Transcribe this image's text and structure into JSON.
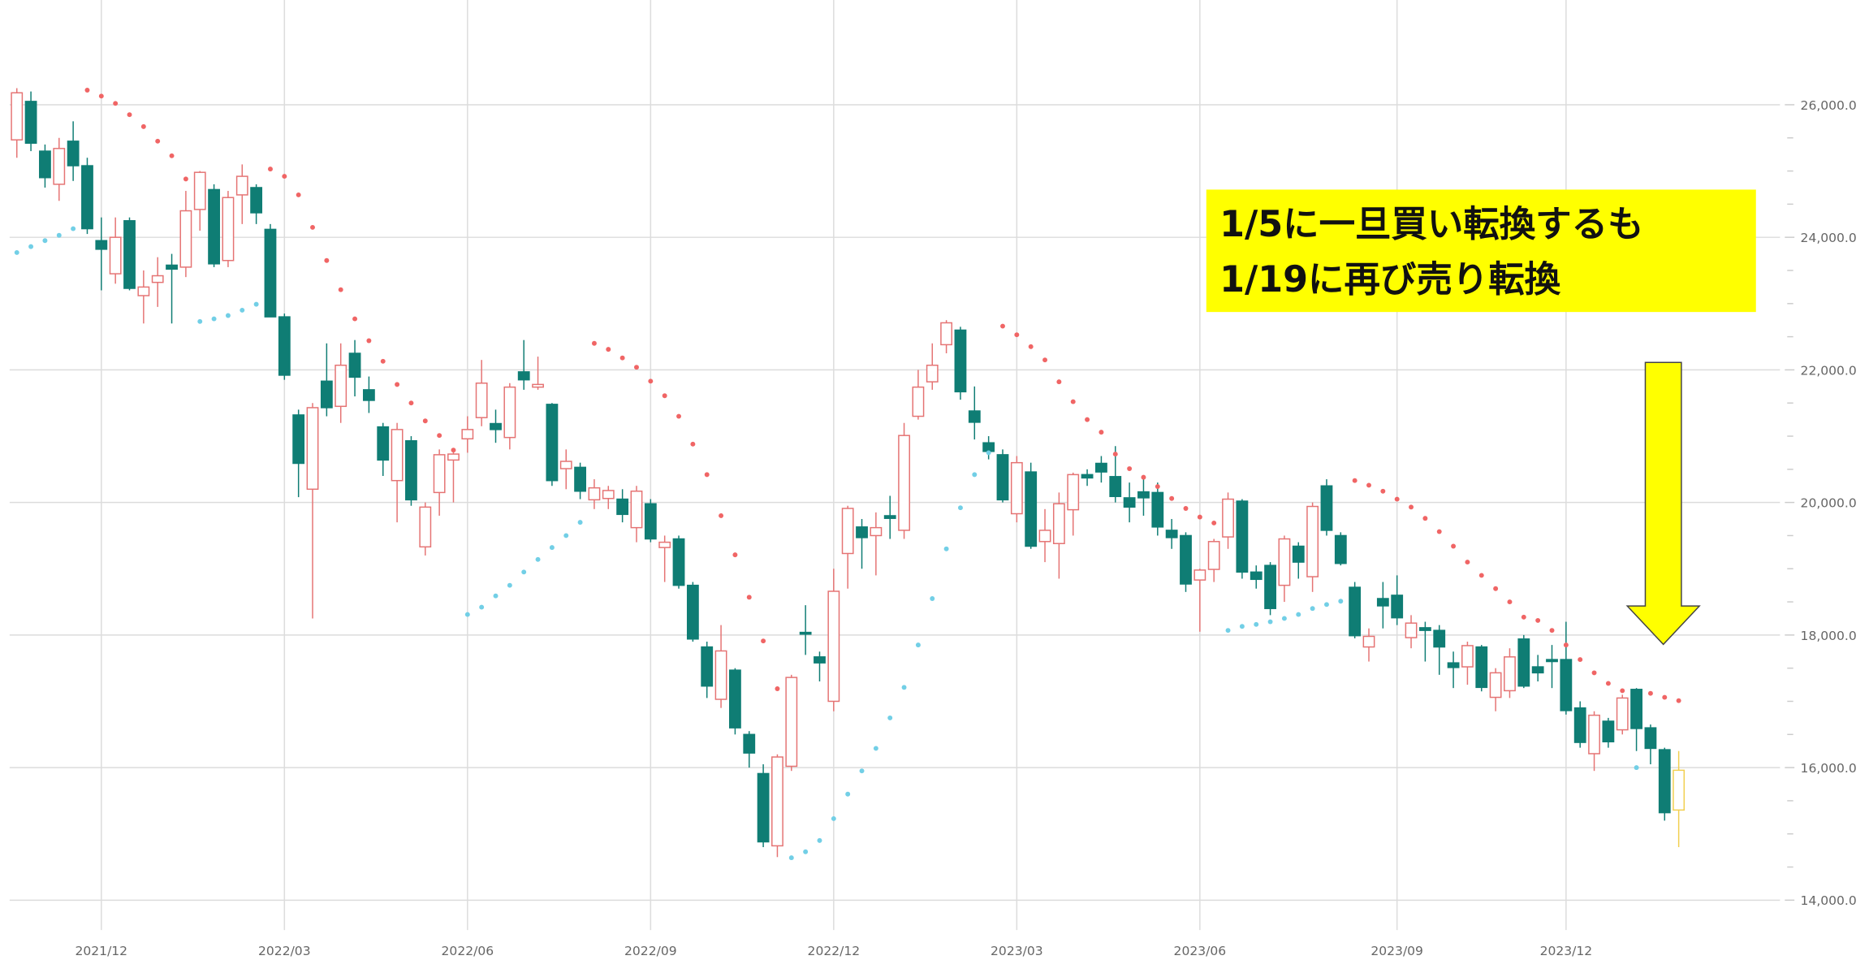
{
  "chart_data": {
    "type": "candlestick",
    "categories": [
      null,
      null,
      null,
      null,
      null,
      null,
      "2021/12",
      null,
      null,
      null,
      null,
      null,
      null,
      null,
      null,
      null,
      null,
      null,
      null,
      "2022/03",
      null,
      null,
      null,
      null,
      null,
      null,
      null,
      null,
      null,
      null,
      null,
      null,
      "2022/06",
      null,
      null,
      null,
      null,
      null,
      null,
      null,
      null,
      null,
      null,
      null,
      null,
      "2022/09",
      null,
      null,
      null,
      null,
      null,
      null,
      null,
      null,
      null,
      null,
      null,
      null,
      "2022/12",
      null,
      null,
      null,
      null,
      null,
      null,
      null,
      null,
      null,
      null,
      null,
      null,
      "2023/03",
      null,
      null,
      null,
      null,
      null,
      null,
      null,
      null,
      null,
      null,
      null,
      null,
      "2023/06",
      null,
      null,
      null,
      null,
      null,
      null,
      null,
      null,
      null,
      null,
      null,
      null,
      null,
      "2023/09",
      null,
      null,
      null,
      null,
      null,
      null,
      null,
      null,
      null,
      null,
      null,
      "2023/12",
      null,
      null,
      null,
      null,
      null,
      null,
      null,
      null
    ],
    "open": [
      25470,
      26050,
      25300,
      24800,
      25450,
      25080,
      23950,
      23450,
      24250,
      23120,
      23320,
      23580,
      23550,
      24420,
      24720,
      23650,
      24640,
      24750,
      24120,
      22800,
      21320,
      20200,
      21830,
      21450,
      22250,
      21700,
      21140,
      20330,
      20930,
      19330,
      20150,
      20640,
      20960,
      21280,
      21190,
      20980,
      21970,
      21740,
      21480,
      20510,
      20530,
      20040,
      20060,
      20050,
      19620,
      19980,
      19320,
      19450,
      18750,
      17820,
      17030,
      17470,
      16500,
      15910,
      14820,
      16020,
      18040,
      17670,
      17000,
      19230,
      19630,
      19500,
      19800,
      19580,
      21300,
      21820,
      22380,
      22600,
      21380,
      20900,
      20720,
      19830,
      20460,
      19410,
      19380,
      19890,
      20420,
      20590,
      20390,
      20070,
      20160,
      20150,
      19580,
      19500,
      18830,
      18990,
      19480,
      20020,
      18950,
      19050,
      18750,
      19340,
      18880,
      20250,
      19500,
      18720,
      17820,
      18550,
      18600,
      17960,
      18110,
      18070,
      17580,
      17520,
      17820,
      17060,
      17160,
      17940,
      17520,
      17630,
      17630,
      16900,
      16210,
      16700,
      16570,
      17180,
      16600,
      16270,
      15360
    ],
    "high": [
      26250,
      26200,
      25400,
      25500,
      25750,
      25200,
      24300,
      24300,
      24300,
      23500,
      23700,
      23750,
      24700,
      25000,
      24800,
      24700,
      25100,
      24800,
      24200,
      22850,
      21400,
      21500,
      22400,
      22400,
      22450,
      21900,
      21200,
      21200,
      21000,
      20000,
      20800,
      20800,
      21300,
      22150,
      21400,
      21800,
      22450,
      22200,
      21500,
      20800,
      20600,
      20350,
      20250,
      20200,
      20250,
      20050,
      19500,
      19500,
      18800,
      17900,
      18150,
      17500,
      16550,
      16050,
      16200,
      17400,
      18450,
      17750,
      19000,
      19950,
      19750,
      19850,
      20100,
      21200,
      22000,
      22400,
      22750,
      22650,
      21750,
      21000,
      20800,
      20700,
      20600,
      19900,
      20150,
      20450,
      20500,
      20700,
      20850,
      20300,
      20400,
      20300,
      19750,
      19550,
      19000,
      19450,
      20150,
      20050,
      19050,
      19100,
      19500,
      19400,
      20000,
      20350,
      19550,
      18800,
      18100,
      18800,
      18900,
      18300,
      18200,
      18150,
      17750,
      17900,
      17850,
      17500,
      17800,
      18000,
      17700,
      17850,
      18200,
      17000,
      16850,
      16750,
      17100,
      17200,
      16650,
      16300,
      16250
    ],
    "low": [
      25200,
      25300,
      24750,
      24550,
      24850,
      24050,
      23200,
      23300,
      23200,
      22700,
      22950,
      22700,
      23400,
      24100,
      23550,
      23550,
      24200,
      24200,
      22800,
      21850,
      20080,
      18250,
      21300,
      21200,
      21600,
      21350,
      20400,
      19700,
      19950,
      19200,
      19800,
      20000,
      20750,
      21150,
      20900,
      20800,
      21700,
      21700,
      20250,
      20200,
      20050,
      19900,
      19900,
      19700,
      19400,
      19400,
      18800,
      18700,
      17900,
      17050,
      16900,
      16500,
      16000,
      14800,
      14650,
      15950,
      17700,
      17300,
      16850,
      18700,
      19000,
      18900,
      19450,
      19450,
      21250,
      21700,
      22250,
      21550,
      20950,
      20650,
      20000,
      19700,
      19300,
      19100,
      18850,
      19500,
      20250,
      20300,
      20000,
      19700,
      19800,
      19500,
      19300,
      18650,
      18050,
      18800,
      19300,
      18850,
      18700,
      18300,
      18500,
      18850,
      18650,
      19500,
      19050,
      17950,
      17600,
      18100,
      18150,
      17800,
      17600,
      17400,
      17200,
      17250,
      17150,
      16850,
      17050,
      17200,
      17300,
      17200,
      16800,
      16300,
      15950,
      16300,
      16500,
      16250,
      16050,
      15200,
      14800
    ],
    "close": [
      26180,
      25420,
      24900,
      25340,
      25080,
      24130,
      23820,
      24000,
      23230,
      23250,
      23420,
      23520,
      24400,
      24980,
      23600,
      24600,
      24920,
      24370,
      22800,
      21920,
      20590,
      21430,
      21430,
      22070,
      21890,
      21540,
      20640,
      21100,
      20040,
      19930,
      20720,
      20730,
      21100,
      21800,
      21100,
      21740,
      21850,
      21780,
      20330,
      20620,
      20170,
      20220,
      20180,
      19820,
      20170,
      19450,
      19400,
      18750,
      17940,
      17230,
      17760,
      16600,
      16220,
      14880,
      16160,
      17360,
      18020,
      17580,
      18660,
      19910,
      19470,
      19620,
      19760,
      21010,
      21740,
      22070,
      22710,
      21670,
      21210,
      20770,
      20040,
      20600,
      19340,
      19580,
      19980,
      20420,
      20370,
      20460,
      20090,
      19930,
      20070,
      19630,
      19470,
      18770,
      18980,
      19410,
      20050,
      18950,
      18840,
      18400,
      19450,
      19100,
      19940,
      19580,
      19080,
      17990,
      17980,
      18440,
      18260,
      18180,
      18070,
      17820,
      17510,
      17840,
      17210,
      17430,
      17670,
      17230,
      17430,
      17600,
      16860,
      16380,
      16790,
      16390,
      17050,
      16590,
      16290,
      15320,
      15960
    ],
    "sar": [
      23770,
      23860,
      23950,
      24030,
      24130,
      26220,
      26130,
      26020,
      25850,
      25670,
      25450,
      25230,
      24880,
      22730,
      22770,
      22820,
      22900,
      22990,
      25030,
      24920,
      24640,
      24150,
      23650,
      23210,
      22770,
      22440,
      22130,
      21780,
      21500,
      21230,
      21010,
      20790,
      18310,
      18420,
      18590,
      18750,
      18950,
      19140,
      19320,
      19500,
      19700,
      22400,
      22310,
      22180,
      22040,
      21830,
      21610,
      21300,
      20880,
      20420,
      19800,
      19210,
      18570,
      17910,
      17190,
      14640,
      14730,
      14900,
      15230,
      15600,
      15950,
      16290,
      16750,
      17210,
      17850,
      18550,
      19300,
      19920,
      20420,
      20750,
      22660,
      22530,
      22350,
      22150,
      21820,
      21520,
      21250,
      21060,
      20730,
      20510,
      20380,
      20240,
      20060,
      19910,
      19780,
      19690,
      18070,
      18130,
      18160,
      18200,
      18250,
      18310,
      18400,
      18460,
      18510,
      20330,
      20260,
      20170,
      20050,
      19930,
      19760,
      19560,
      19340,
      19100,
      18900,
      18700,
      18500,
      18270,
      18220,
      18070,
      17850,
      17630,
      17430,
      17270,
      17160,
      16000,
      17120,
      17060,
      17010
    ],
    "up_color": "#e57373",
    "down_color": "#0f7d74",
    "last_color": "#f2cf4f",
    "sar_above_color": "#f06565",
    "sar_below_color": "#72cfe6",
    "ylim": [
      13550,
      27580
    ],
    "yticks": [
      {
        "value": 14000,
        "label": "14,000.0"
      },
      {
        "value": 16000,
        "label": "16,000.0"
      },
      {
        "value": 18000,
        "label": "18,000.0"
      },
      {
        "value": 20000,
        "label": "20,000.0"
      },
      {
        "value": 22000,
        "label": "22,000.0"
      },
      {
        "value": 24000,
        "label": "24,000.0"
      },
      {
        "value": 26000,
        "label": "26,000.0"
      }
    ],
    "yminor": [
      14500,
      15000,
      15500,
      16500,
      17000,
      17500,
      18500,
      19000,
      19500,
      20500,
      21000,
      21500,
      22500,
      23000,
      23500,
      24500,
      25000,
      25500
    ],
    "grid": true,
    "annotation": [
      "1/5に一旦買い転換するも",
      "1/19に再び売り転換"
    ]
  }
}
